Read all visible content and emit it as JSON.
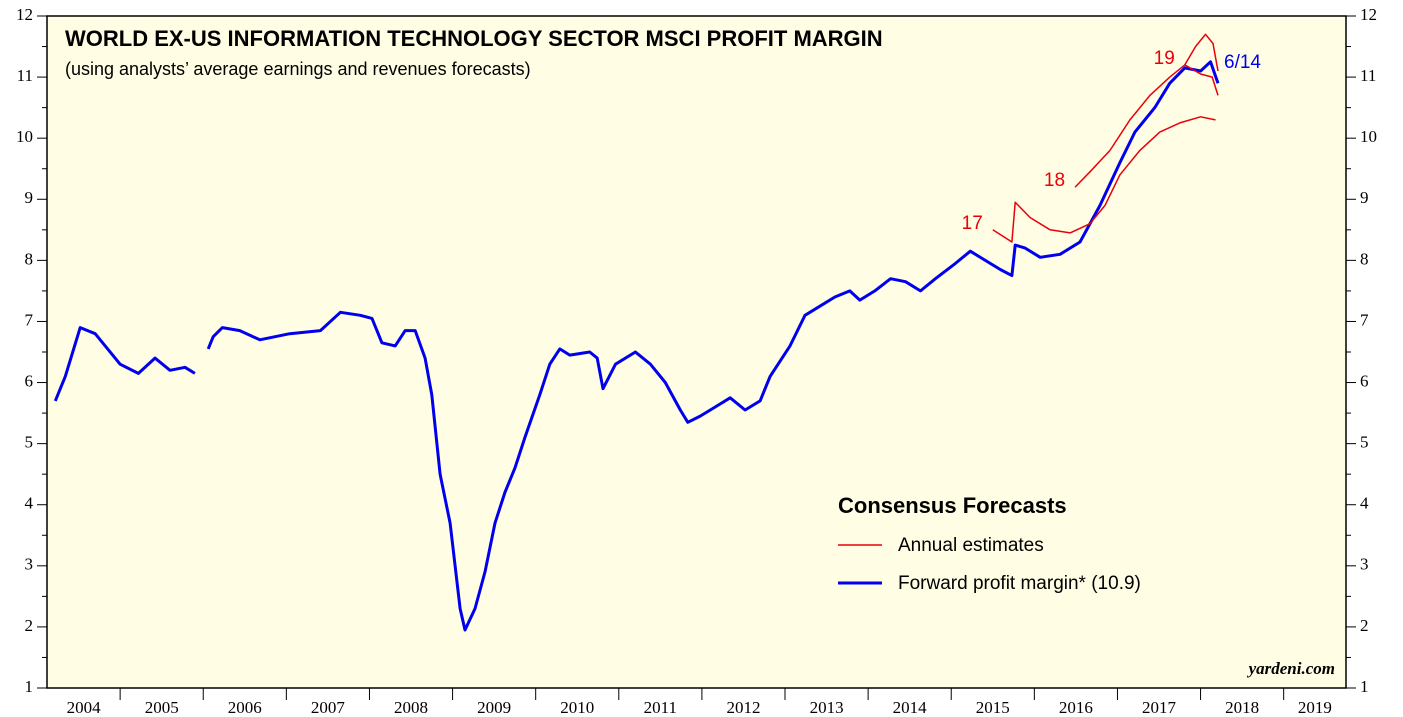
{
  "chart_data": {
    "type": "line",
    "title": "WORLD EX-US INFORMATION TECHNOLOGY SECTOR MSCI PROFIT MARGIN",
    "subtitle": "(using analysts’ average earnings and revenues forecasts)",
    "legend": {
      "title": "Consensus Forecasts",
      "annual_label": "Annual estimates",
      "annual_color": "#e8000b"
    },
    "last_date_label": "6/14",
    "source": "yardeni.com",
    "xlim": [
      2004.12,
      2019.75
    ],
    "xticks": [
      2005,
      2006,
      2007,
      2008,
      2009,
      2010,
      2011,
      2012,
      2013,
      2014,
      2015,
      2016,
      2017,
      2018,
      2019
    ],
    "x_labels": [
      "2004",
      "2005",
      "2006",
      "2007",
      "2008",
      "2009",
      "2010",
      "2011",
      "2012",
      "2013",
      "2014",
      "2015",
      "2016",
      "2017",
      "2018",
      "2019"
    ],
    "ylim": [
      1,
      12
    ],
    "yticks": [
      1,
      2,
      3,
      4,
      5,
      6,
      7,
      8,
      9,
      10,
      11,
      12
    ],
    "y2lim": [
      1,
      12
    ],
    "y2ticks": [
      1,
      2,
      3,
      4,
      5,
      6,
      7,
      8,
      9,
      10,
      11,
      12
    ],
    "series": [
      {
        "name": "Forward profit margin* (10.9)",
        "color": "#0000ee",
        "x": [
          2004.22,
          2004.34,
          2004.52,
          2004.7,
          2004.82,
          2005.0,
          2005.22,
          2005.42,
          2005.6,
          2005.78,
          2005.9,
          2005.98,
          2006.06,
          2006.12,
          2006.23,
          2006.44,
          2006.68,
          2007.04,
          2007.41,
          2007.65,
          2007.89,
          2008.03,
          2008.15,
          2008.31,
          2008.43,
          2008.55,
          2008.67,
          2008.75,
          2008.85,
          2008.97,
          2009.09,
          2009.15,
          2009.27,
          2009.39,
          2009.51,
          2009.63,
          2009.75,
          2009.87,
          2010.05,
          2010.17,
          2010.29,
          2010.41,
          2010.65,
          2010.74,
          2010.81,
          2010.96,
          2011.2,
          2011.38,
          2011.56,
          2011.74,
          2011.83,
          2011.98,
          2012.16,
          2012.34,
          2012.52,
          2012.7,
          2012.82,
          2013.06,
          2013.24,
          2013.42,
          2013.6,
          2013.78,
          2013.9,
          2014.08,
          2014.27,
          2014.45,
          2014.63,
          2014.81,
          2015.05,
          2015.23,
          2015.41,
          2015.59,
          2015.73,
          2015.77,
          2015.89,
          2016.07,
          2016.31,
          2016.55,
          2016.79,
          2017.03,
          2017.21,
          2017.45,
          2017.63,
          2017.81,
          2018.0,
          2018.12,
          2018.21
        ],
        "values": [
          5.7,
          6.1,
          6.9,
          6.8,
          6.6,
          6.3,
          6.15,
          6.4,
          6.2,
          6.25,
          6.15,
          null,
          6.55,
          6.75,
          6.9,
          6.85,
          6.7,
          6.8,
          6.85,
          7.15,
          7.1,
          7.05,
          6.65,
          6.6,
          6.85,
          6.85,
          6.4,
          5.8,
          4.5,
          3.7,
          2.3,
          1.95,
          2.3,
          2.9,
          3.7,
          4.2,
          4.6,
          5.1,
          5.8,
          6.3,
          6.55,
          6.45,
          6.5,
          6.4,
          5.9,
          6.3,
          6.5,
          6.3,
          6.0,
          5.55,
          5.35,
          5.45,
          5.6,
          5.75,
          5.55,
          5.7,
          6.1,
          6.6,
          7.1,
          7.25,
          7.4,
          7.5,
          7.35,
          7.5,
          7.7,
          7.65,
          7.5,
          7.7,
          7.95,
          8.15,
          8.0,
          7.85,
          7.75,
          8.25,
          8.2,
          8.05,
          8.1,
          8.3,
          8.9,
          9.6,
          10.1,
          10.5,
          10.9,
          11.15,
          11.1,
          11.25,
          10.9
        ]
      },
      {
        "name": "17",
        "color": "#e8000b",
        "x": [
          2015.5,
          2015.73,
          2015.77,
          2015.95,
          2016.19,
          2016.43,
          2016.67,
          2016.85,
          2017.03,
          2017.27,
          2017.51,
          2017.75,
          2018.0,
          2018.18
        ],
        "values": [
          8.5,
          8.3,
          8.95,
          8.7,
          8.5,
          8.45,
          8.6,
          8.9,
          9.4,
          9.8,
          10.1,
          10.25,
          10.35,
          10.3
        ]
      },
      {
        "name": "18",
        "color": "#e8000b",
        "x": [
          2016.49,
          2016.67,
          2016.91,
          2017.15,
          2017.39,
          2017.63,
          2017.81,
          2018.0,
          2018.14,
          2018.21
        ],
        "values": [
          9.2,
          9.45,
          9.8,
          10.3,
          10.7,
          11.0,
          11.2,
          11.05,
          11.0,
          10.7
        ]
      },
      {
        "name": "19",
        "color": "#e8000b",
        "x": [
          2017.81,
          2017.94,
          2018.06,
          2018.15,
          2018.21
        ],
        "values": [
          11.2,
          11.5,
          11.7,
          11.55,
          11.1
        ]
      }
    ]
  }
}
